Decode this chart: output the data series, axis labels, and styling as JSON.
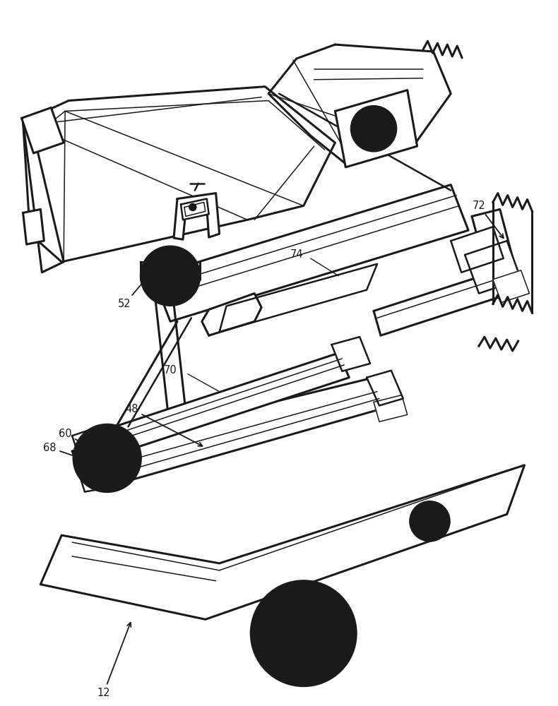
{
  "bg_color": "#ffffff",
  "line_color": "#1a1a1a",
  "lw": 1.8,
  "lw_thin": 1.1,
  "lw_thick": 2.2,
  "fig_width": 7.9,
  "fig_height": 10.0,
  "label_fontsize": 10.5
}
